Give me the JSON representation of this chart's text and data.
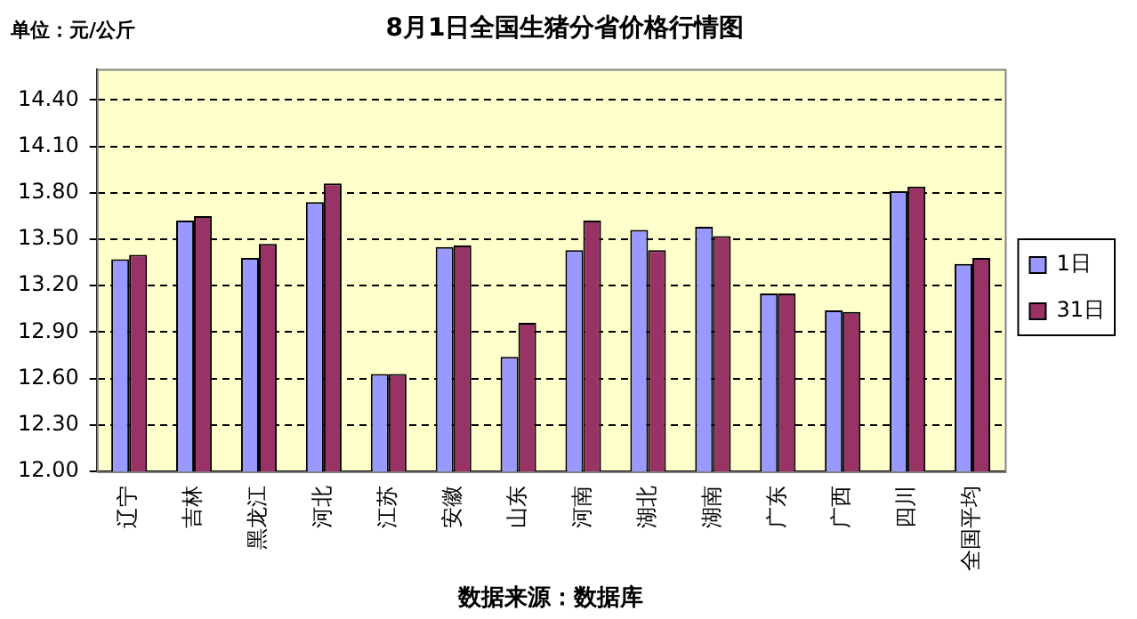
{
  "chart_data": {
    "type": "bar",
    "title": "8月1日全国生猪分省价格行情图",
    "categories": [
      "辽宁",
      "吉林",
      "黑龙江",
      "河北",
      "江苏",
      "安徽",
      "山东",
      "河南",
      "湖北",
      "湖南",
      "广东",
      "广西",
      "四川",
      "全国平均"
    ],
    "series": [
      {
        "name": "1日",
        "color": "#9999ff",
        "values": [
          13.37,
          13.62,
          13.38,
          13.74,
          12.63,
          13.45,
          12.74,
          13.43,
          13.56,
          13.58,
          13.15,
          13.04,
          13.81,
          13.34
        ]
      },
      {
        "name": "31日",
        "color": "#993366",
        "values": [
          13.4,
          13.65,
          13.47,
          13.86,
          12.63,
          13.46,
          12.96,
          13.62,
          13.43,
          13.52,
          13.15,
          13.03,
          13.84,
          13.38
        ]
      }
    ],
    "ylim": [
      12.0,
      14.6
    ],
    "yticks": [
      {
        "value": 12.0,
        "label": "12.00"
      },
      {
        "value": 12.3,
        "label": "12.30"
      },
      {
        "value": 12.6,
        "label": "12.60"
      },
      {
        "value": 12.9,
        "label": "12.90"
      },
      {
        "value": 13.2,
        "label": "13.20"
      },
      {
        "value": 13.5,
        "label": "13.50"
      },
      {
        "value": 13.8,
        "label": "13.80"
      },
      {
        "value": 14.1,
        "label": "14.10"
      },
      {
        "value": 14.4,
        "label": "14.40"
      }
    ],
    "grid": "y",
    "legend": "right",
    "annotations": [
      "单位：元/公斤",
      "数据来源：数据库"
    ]
  }
}
